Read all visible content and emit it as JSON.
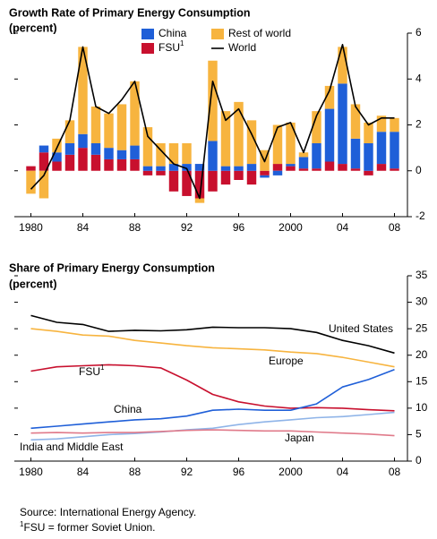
{
  "chart_data": [
    {
      "type": "bar",
      "title": "Growth Rate of Primary Energy Consumption",
      "subtitle": "(percent)",
      "x": [
        1980,
        1981,
        1982,
        1983,
        1984,
        1985,
        1986,
        1987,
        1988,
        1989,
        1990,
        1991,
        1992,
        1993,
        1994,
        1995,
        1996,
        1997,
        1998,
        1999,
        2000,
        2001,
        2002,
        2003,
        2004,
        2005,
        2006,
        2007,
        2008
      ],
      "xlim": [
        1979,
        2009
      ],
      "xticks": [
        {
          "value": 1980,
          "label": "1980"
        },
        {
          "value": 1984,
          "label": "84"
        },
        {
          "value": 1988,
          "label": "88"
        },
        {
          "value": 1992,
          "label": "92"
        },
        {
          "value": 1996,
          "label": "96"
        },
        {
          "value": 2000,
          "label": "2000"
        },
        {
          "value": 2004,
          "label": "04"
        },
        {
          "value": 2008,
          "label": "08"
        }
      ],
      "ylim": [
        -2,
        6
      ],
      "yticks": [
        -2,
        0,
        2,
        4,
        6
      ],
      "series": [
        {
          "name": "China",
          "color": "#1f5fd8",
          "values": [
            0,
            0.3,
            0.4,
            0.5,
            0.6,
            0.5,
            0.5,
            0.4,
            0.6,
            0.2,
            0.2,
            0.3,
            0.3,
            0.3,
            1.3,
            0.2,
            0.2,
            0.3,
            -0.1,
            -0.2,
            0.1,
            0.5,
            1.1,
            2.3,
            3.5,
            1.3,
            1.2,
            1.4,
            1.6
          ]
        },
        {
          "name": "FSU",
          "superscript": "1",
          "color": "#c8102e",
          "values": [
            0.2,
            0.8,
            0.4,
            0.7,
            1.0,
            0.7,
            0.5,
            0.5,
            0.5,
            -0.2,
            -0.2,
            -0.9,
            -1.1,
            -1.2,
            -0.9,
            -0.6,
            -0.4,
            -0.6,
            -0.2,
            0.3,
            0.2,
            0.1,
            0.1,
            0.4,
            0.3,
            0.1,
            -0.2,
            0.3,
            0.1
          ]
        },
        {
          "name": "Rest of world",
          "color": "#f7b43f",
          "values": [
            -1.0,
            -1.2,
            0.6,
            1.0,
            3.8,
            1.6,
            1.5,
            2.0,
            2.8,
            1.7,
            1.0,
            0.9,
            0.9,
            -0.2,
            3.5,
            2.4,
            2.8,
            1.9,
            0.9,
            1.7,
            1.8,
            0.2,
            1.4,
            1.0,
            1.6,
            1.5,
            0.9,
            0.7,
            0.6
          ]
        },
        {
          "name": "World",
          "type": "line",
          "color": "#000000",
          "values": [
            -0.8,
            -0.2,
            1.0,
            2.2,
            5.4,
            2.8,
            2.5,
            3.1,
            3.9,
            1.5,
            0.9,
            0.3,
            0.1,
            -1.2,
            3.9,
            2.2,
            2.7,
            1.6,
            0.4,
            1.9,
            2.1,
            0.8,
            2.4,
            3.5,
            5.5,
            2.8,
            2.0,
            2.3,
            2.3
          ]
        }
      ]
    },
    {
      "type": "line",
      "title": "Share of Primary Energy Consumption",
      "subtitle": "(percent)",
      "x": [
        1980,
        1982,
        1984,
        1986,
        1988,
        1990,
        1992,
        1994,
        1996,
        1998,
        2000,
        2002,
        2004,
        2006,
        2008
      ],
      "xlim": [
        1979,
        2009
      ],
      "xticks": [
        {
          "value": 1980,
          "label": "1980"
        },
        {
          "value": 1984,
          "label": "84"
        },
        {
          "value": 1988,
          "label": "88"
        },
        {
          "value": 1992,
          "label": "92"
        },
        {
          "value": 1996,
          "label": "96"
        },
        {
          "value": 2000,
          "label": "2000"
        },
        {
          "value": 2004,
          "label": "04"
        },
        {
          "value": 2008,
          "label": "08"
        }
      ],
      "ylim": [
        0,
        35
      ],
      "yticks": [
        0,
        5,
        10,
        15,
        20,
        25,
        30,
        35
      ],
      "series": [
        {
          "name": "United States",
          "color": "#000000",
          "values": [
            27.5,
            26.2,
            25.8,
            24.5,
            24.7,
            24.6,
            24.8,
            25.3,
            25.2,
            25.2,
            25.0,
            24.3,
            22.8,
            21.8,
            20.4
          ]
        },
        {
          "name": "Europe",
          "color": "#f7b43f",
          "values": [
            25.0,
            24.5,
            23.8,
            23.6,
            22.8,
            22.3,
            21.8,
            21.4,
            21.2,
            21.0,
            20.6,
            20.3,
            19.6,
            18.7,
            17.8
          ]
        },
        {
          "name": "FSU",
          "superscript": "1",
          "color": "#c8102e",
          "values": [
            17.0,
            17.8,
            18.0,
            18.2,
            18.0,
            17.6,
            15.3,
            12.6,
            11.2,
            10.4,
            10.0,
            10.1,
            10.0,
            9.7,
            9.5
          ]
        },
        {
          "name": "China",
          "color": "#1f5fd8",
          "values": [
            6.2,
            6.6,
            7.0,
            7.4,
            7.8,
            8.0,
            8.5,
            9.6,
            9.8,
            9.6,
            9.6,
            10.8,
            14.0,
            15.4,
            17.3
          ]
        },
        {
          "name": "India and Middle East",
          "color": "#8fb4e8",
          "values": [
            4.0,
            4.2,
            4.6,
            5.0,
            5.2,
            5.5,
            5.9,
            6.2,
            6.9,
            7.4,
            7.8,
            8.2,
            8.4,
            8.8,
            9.2
          ]
        },
        {
          "name": "Japan",
          "color": "#e07a8a",
          "values": [
            5.3,
            5.4,
            5.3,
            5.4,
            5.4,
            5.6,
            5.8,
            5.9,
            5.8,
            5.7,
            5.7,
            5.5,
            5.3,
            5.1,
            4.8
          ]
        }
      ]
    }
  ],
  "notes": {
    "source": "Source: International Energy Agency.",
    "footnote_mark": "1",
    "footnote": "FSU = former Soviet Union."
  }
}
